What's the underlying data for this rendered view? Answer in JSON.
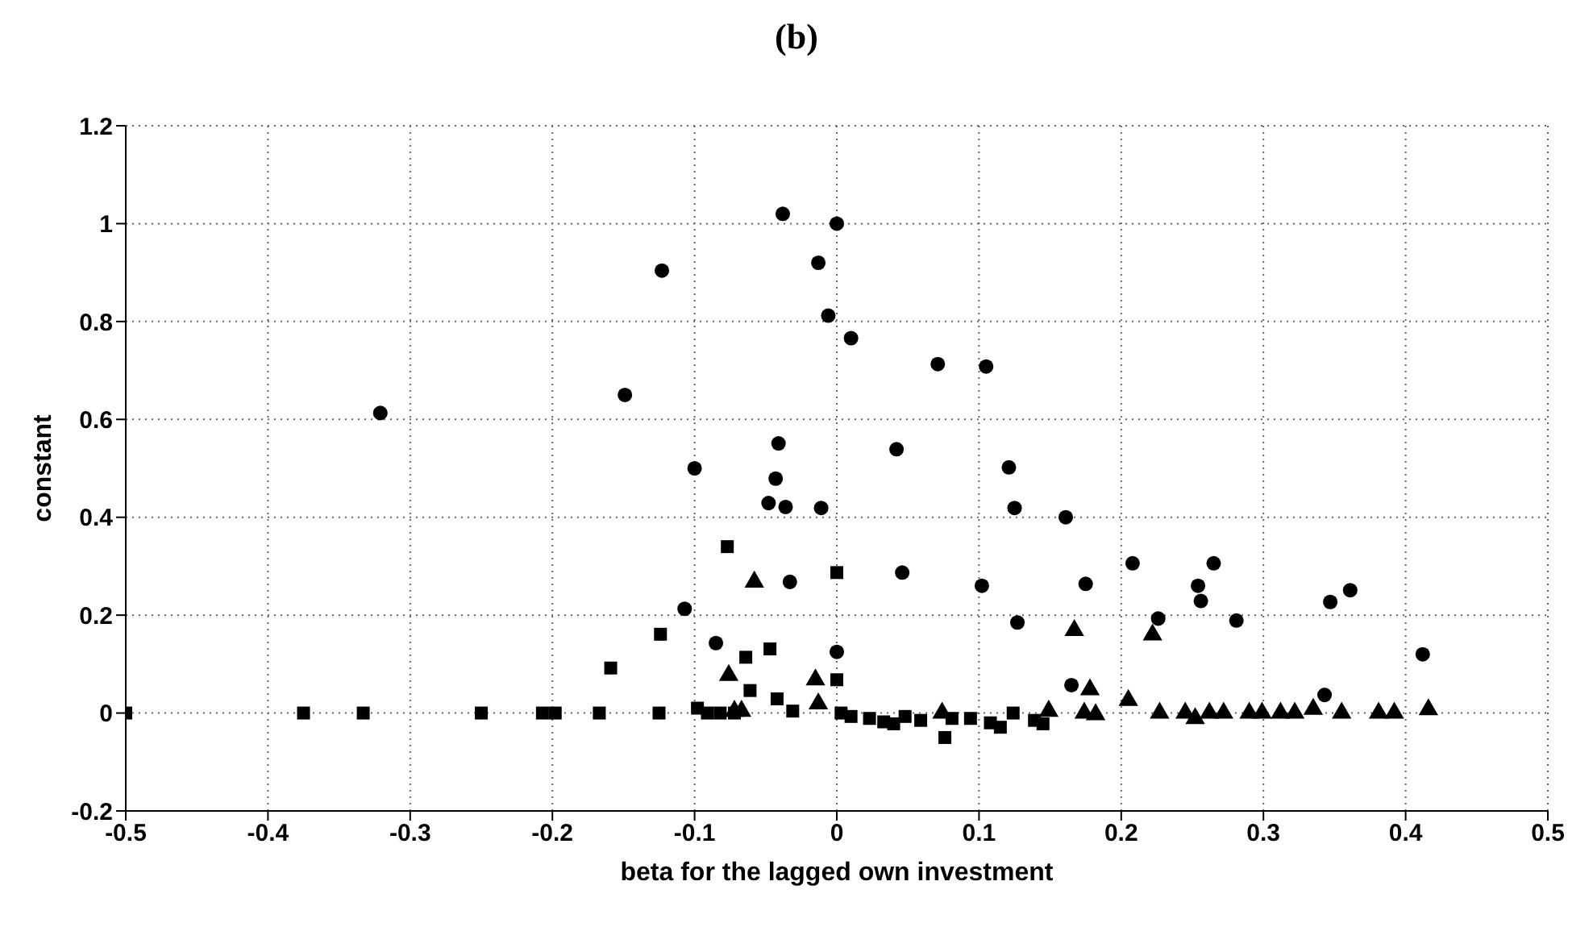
{
  "chart_data": {
    "type": "scatter",
    "title": "(b)",
    "xlabel": "beta for the lagged own investment",
    "ylabel": "constant",
    "xlim": [
      -0.5,
      0.5
    ],
    "xticks": [
      -0.5,
      -0.4,
      -0.3,
      -0.2,
      -0.1,
      0,
      0.1,
      0.2,
      0.3,
      0.4,
      0.5
    ],
    "ylim": [
      -0.2,
      1.2
    ],
    "yticks": [
      -0.2,
      0,
      0.2,
      0.4,
      0.6,
      0.8,
      1,
      1.2
    ],
    "grid": true,
    "legend": false,
    "series": [
      {
        "color": "#000000",
        "marker": "circle",
        "x": [
          -0.321,
          -0.038,
          0,
          -0.123,
          -0.013,
          -0.006,
          0.01,
          0.071,
          0.105,
          -0.149,
          -0.041,
          0.042,
          -0.1,
          0.121,
          -0.043,
          -0.048,
          -0.036,
          -0.011,
          0.125,
          0.161,
          -0.033,
          0.046,
          0.102,
          -0.107,
          0.127,
          -0.085,
          0,
          0.165,
          0.208,
          0.175,
          0.265,
          0.254,
          0.256,
          0.226,
          0.281,
          0.347,
          0.361,
          0.412,
          0.343
        ],
        "values": [
          0.613,
          1.02,
          1.0,
          0.904,
          0.92,
          0.812,
          0.766,
          0.713,
          0.708,
          0.65,
          0.551,
          0.539,
          0.5,
          0.502,
          0.479,
          0.429,
          0.421,
          0.419,
          0.419,
          0.4,
          0.268,
          0.287,
          0.26,
          0.213,
          0.185,
          0.143,
          0.125,
          0.057,
          0.306,
          0.264,
          0.306,
          0.26,
          0.229,
          0.193,
          0.189,
          0.227,
          0.251,
          0.12,
          0.037
        ]
      },
      {
        "color": "#000000",
        "marker": "square",
        "x": [
          -0.5,
          -0.375,
          -0.333,
          -0.25,
          -0.207,
          -0.198,
          -0.167,
          -0.125,
          -0.159,
          -0.124,
          -0.077,
          0,
          -0.064,
          -0.047,
          -0.061,
          0,
          -0.098,
          -0.091,
          -0.082,
          -0.072,
          -0.042,
          -0.031,
          0.003,
          0.01,
          0.023,
          0.033,
          0.04,
          0.048,
          0.059,
          0.076,
          0.081,
          0.094,
          0.108,
          0.115,
          0.124,
          0.139,
          0.145
        ],
        "values": [
          0,
          0,
          0,
          0,
          0,
          0,
          0,
          0,
          0.092,
          0.161,
          0.34,
          0.287,
          0.114,
          0.131,
          0.046,
          0.068,
          0.01,
          0,
          0,
          0,
          0.029,
          0.004,
          0,
          -0.007,
          -0.011,
          -0.018,
          -0.022,
          -0.007,
          -0.015,
          -0.05,
          -0.011,
          -0.011,
          -0.02,
          -0.029,
          0,
          -0.015,
          -0.022
        ]
      },
      {
        "color": "#000000",
        "marker": "triangle",
        "x": [
          -0.058,
          -0.076,
          -0.015,
          -0.013,
          -0.072,
          -0.067,
          0.074,
          0.149,
          0.167,
          0.178,
          0.174,
          0.182,
          0.205,
          0.222,
          0.227,
          0.245,
          0.252,
          0.262,
          0.272,
          0.29,
          0.299,
          0.312,
          0.322,
          0.335,
          0.355,
          0.381,
          0.392,
          0.416
        ],
        "values": [
          0.268,
          0.077,
          0.068,
          0.019,
          0.004,
          0.004,
          0,
          0.004,
          0.169,
          0.048,
          0,
          -0.003,
          0.026,
          0.16,
          0,
          0,
          -0.011,
          0,
          0,
          0,
          0,
          0,
          0,
          0.008,
          0,
          0,
          0,
          0.007
        ]
      }
    ]
  }
}
